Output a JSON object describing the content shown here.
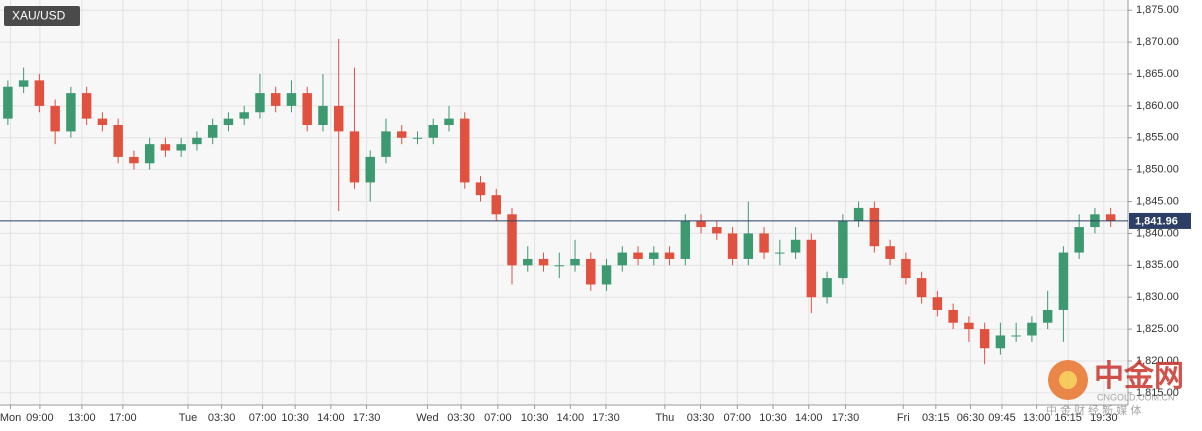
{
  "chart_data": {
    "type": "candlestick",
    "title": "XAU/USD",
    "up_color": "#3d9970",
    "down_color": "#e0513f",
    "grid": true,
    "xlim": [
      0,
      107.4
    ],
    "xticks": [
      {
        "value": 1.0,
        "label": "Mon"
      },
      {
        "value": 3.8,
        "label": "09:00"
      },
      {
        "value": 7.8,
        "label": "13:00"
      },
      {
        "value": 11.7,
        "label": "17:00"
      },
      {
        "value": 17.9,
        "label": "Tue"
      },
      {
        "value": 21.1,
        "label": "03:30"
      },
      {
        "value": 25.0,
        "label": "07:00"
      },
      {
        "value": 28.1,
        "label": "10:30"
      },
      {
        "value": 31.5,
        "label": "14:00"
      },
      {
        "value": 34.9,
        "label": "17:30"
      },
      {
        "value": 40.7,
        "label": "Wed"
      },
      {
        "value": 43.9,
        "label": "03:30"
      },
      {
        "value": 47.4,
        "label": "07:00"
      },
      {
        "value": 50.9,
        "label": "10:30"
      },
      {
        "value": 54.3,
        "label": "14:00"
      },
      {
        "value": 57.7,
        "label": "17:30"
      },
      {
        "value": 63.3,
        "label": "Thu"
      },
      {
        "value": 66.7,
        "label": "03:30"
      },
      {
        "value": 70.2,
        "label": "07:00"
      },
      {
        "value": 73.6,
        "label": "10:30"
      },
      {
        "value": 77.0,
        "label": "14:00"
      },
      {
        "value": 80.5,
        "label": "17:30"
      },
      {
        "value": 86.0,
        "label": "Fri"
      },
      {
        "value": 89.1,
        "label": "03:15"
      },
      {
        "value": 92.4,
        "label": "06:30"
      },
      {
        "value": 95.4,
        "label": "09:45"
      },
      {
        "value": 98.7,
        "label": "13:00"
      },
      {
        "value": 101.7,
        "label": "16:15"
      },
      {
        "value": 105.1,
        "label": "19:30"
      }
    ],
    "ylim": [
      1813.1,
      1876.6
    ],
    "yticks": [
      {
        "value": 1815,
        "label": "1,815.00"
      },
      {
        "value": 1820,
        "label": "1,820.00"
      },
      {
        "value": 1825,
        "label": "1,825.00"
      },
      {
        "value": 1830,
        "label": "1,830.00"
      },
      {
        "value": 1835,
        "label": "1,835.00"
      },
      {
        "value": 1840,
        "label": "1,840.00"
      },
      {
        "value": 1845,
        "label": "1,845.00"
      },
      {
        "value": 1850,
        "label": "1,850.00"
      },
      {
        "value": 1855,
        "label": "1,855.00"
      },
      {
        "value": 1860,
        "label": "1,860.00"
      },
      {
        "value": 1865,
        "label": "1,865.00"
      },
      {
        "value": 1870,
        "label": "1,870.00"
      },
      {
        "value": 1875,
        "label": "1,875.00"
      }
    ],
    "current_price": {
      "value": 1841.96,
      "label": "1,841.96"
    },
    "x": [
      0.75,
      2.25,
      3.75,
      5.25,
      6.75,
      8.25,
      9.75,
      11.25,
      12.75,
      14.25,
      15.75,
      17.25,
      18.75,
      20.25,
      21.75,
      23.25,
      24.75,
      26.25,
      27.75,
      29.25,
      30.75,
      32.25,
      33.75,
      35.25,
      36.75,
      38.25,
      39.75,
      41.25,
      42.75,
      44.25,
      45.75,
      47.25,
      48.75,
      50.25,
      51.75,
      53.25,
      54.75,
      56.25,
      57.75,
      59.25,
      60.75,
      62.25,
      63.75,
      65.25,
      66.75,
      68.25,
      69.75,
      71.25,
      72.75,
      74.25,
      75.75,
      77.25,
      78.75,
      80.25,
      81.75,
      83.25,
      84.75,
      86.25,
      87.75,
      89.25,
      90.75,
      92.25,
      93.75,
      95.25,
      96.75,
      98.25,
      99.75,
      101.25,
      102.75,
      104.25,
      105.75
    ],
    "open": [
      1858,
      1863,
      1864,
      1860,
      1856,
      1862,
      1858,
      1857,
      1852,
      1851,
      1854,
      1853,
      1854,
      1855,
      1857,
      1858,
      1859,
      1862,
      1860,
      1862,
      1857,
      1860,
      1856,
      1848,
      1852,
      1856,
      1855,
      1855,
      1857,
      1858,
      1848,
      1846,
      1843,
      1835,
      1836,
      1835,
      1835,
      1836,
      1832,
      1835,
      1837,
      1836,
      1837,
      1836,
      1842,
      1841,
      1840,
      1836,
      1840,
      1837,
      1837,
      1839,
      1830,
      1833,
      1842,
      1844,
      1838,
      1836,
      1833,
      1830,
      1828,
      1826,
      1825,
      1822,
      1824,
      1824,
      1826,
      1828,
      1837,
      1841,
      1843
    ],
    "high": [
      1864,
      1866,
      1865,
      1861,
      1863,
      1863,
      1859,
      1858,
      1853,
      1855,
      1855,
      1855,
      1856,
      1858,
      1859,
      1860,
      1865,
      1863,
      1864,
      1863,
      1865,
      1870.5,
      1866,
      1853,
      1858,
      1857,
      1856,
      1858,
      1860,
      1859,
      1849,
      1847,
      1844,
      1838,
      1837,
      1837,
      1839,
      1837,
      1836,
      1838,
      1838,
      1838,
      1838,
      1843,
      1843,
      1842,
      1841,
      1845,
      1841,
      1839,
      1841,
      1840,
      1834,
      1843,
      1845,
      1845,
      1839,
      1837,
      1834,
      1831,
      1829,
      1827,
      1826,
      1826,
      1826,
      1827,
      1831,
      1838,
      1843,
      1844,
      1844
    ],
    "low": [
      1857,
      1862,
      1859,
      1854,
      1855,
      1857,
      1856,
      1851,
      1850,
      1850,
      1852,
      1852,
      1853,
      1854,
      1856,
      1857,
      1858,
      1859,
      1859,
      1856,
      1856,
      1843.5,
      1847,
      1845,
      1851,
      1854,
      1854,
      1854,
      1856,
      1847,
      1845,
      1842,
      1832,
      1834,
      1834,
      1833,
      1834,
      1831,
      1831,
      1834,
      1835,
      1835,
      1835,
      1835,
      1840,
      1839,
      1835,
      1835,
      1836,
      1835,
      1836,
      1827.5,
      1829,
      1832,
      1841,
      1837,
      1835,
      1832,
      1829,
      1827,
      1825,
      1823,
      1819.5,
      1821,
      1823,
      1823,
      1825,
      1823,
      1836,
      1840,
      1841
    ],
    "close": [
      1863,
      1864,
      1860,
      1856,
      1862,
      1858,
      1857,
      1852,
      1851,
      1854,
      1853,
      1854,
      1855,
      1857,
      1858,
      1859,
      1862,
      1860,
      1862,
      1857,
      1860,
      1856,
      1848,
      1852,
      1856,
      1855,
      1855,
      1857,
      1858,
      1848,
      1846,
      1843,
      1835,
      1836,
      1835,
      1835,
      1836,
      1832,
      1835,
      1837,
      1836,
      1837,
      1836,
      1842,
      1841,
      1840,
      1836,
      1840,
      1837,
      1837,
      1839,
      1830,
      1833,
      1842,
      1844,
      1838,
      1836,
      1833,
      1830,
      1828,
      1826,
      1825,
      1822,
      1824,
      1824,
      1826,
      1828,
      1837,
      1841,
      1843,
      1842
    ]
  },
  "watermark": {
    "brand": "中金网",
    "domain": "CNGOLD.COM.CN",
    "slogan": "中 金 财 经 新 媒 体"
  }
}
